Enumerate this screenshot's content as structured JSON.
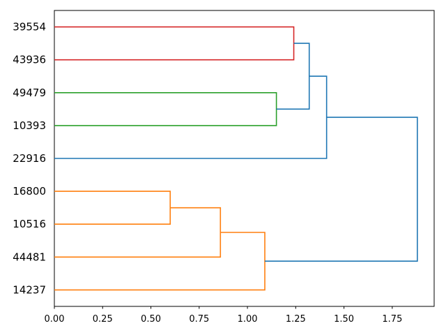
{
  "figure": {
    "background": "#ffffff",
    "title": ""
  },
  "chart_data": {
    "type": "dendrogram",
    "orientation": "left",
    "title": "",
    "xlabel": "",
    "ylabel": "",
    "grid": false,
    "legend": null,
    "leaves": [
      "39554",
      "43936",
      "49479",
      "10393",
      "22916",
      "16800",
      "10516",
      "44481",
      "14237"
    ],
    "x_ticks": [
      "0.00",
      "0.25",
      "0.50",
      "0.75",
      "1.00",
      "1.25",
      "1.50",
      "1.75"
    ],
    "x_tick_values": [
      0,
      0.25,
      0.5,
      0.75,
      1.0,
      1.25,
      1.5,
      1.75
    ],
    "xlim": [
      0,
      1.967
    ],
    "colors": {
      "red_cluster": "#d62728",
      "green_cluster": "#2ca02c",
      "orange_cluster": "#ff7f0e",
      "above_threshold": "#1f77b4",
      "axis": "#000000"
    },
    "merges": [
      {
        "members": [
          "39554",
          "43936"
        ],
        "distance": 1.24,
        "color": "#d62728"
      },
      {
        "members": [
          "49479",
          "10393"
        ],
        "distance": 1.15,
        "color": "#2ca02c"
      },
      {
        "members": [
          "39554+43936",
          "49479+10393"
        ],
        "distance": 1.32,
        "color": "#1f77b4"
      },
      {
        "members": [
          "39554+43936+49479+10393",
          "22916"
        ],
        "distance": 1.41,
        "color": "#1f77b4"
      },
      {
        "members": [
          "16800",
          "10516"
        ],
        "distance": 0.6,
        "color": "#ff7f0e"
      },
      {
        "members": [
          "16800+10516",
          "44481"
        ],
        "distance": 0.86,
        "color": "#ff7f0e"
      },
      {
        "members": [
          "16800+10516+44481",
          "14237"
        ],
        "distance": 1.09,
        "color": "#ff7f0e"
      },
      {
        "members": [
          "top-cluster",
          "bottom-cluster"
        ],
        "distance": 1.88,
        "color": "#1f77b4"
      }
    ],
    "links": [
      {
        "x": 1.24,
        "y1": 0,
        "x1": 0,
        "y2": 1,
        "x2": 0,
        "color": "#d62728"
      },
      {
        "x": 1.15,
        "y1": 2,
        "x1": 0,
        "y2": 3,
        "x2": 0,
        "color": "#2ca02c"
      },
      {
        "x": 1.32,
        "y1": 0.5,
        "x1": 1.24,
        "y2": 2.5,
        "x2": 1.15,
        "color": "#1f77b4"
      },
      {
        "x": 1.41,
        "y1": 1.5,
        "x1": 1.32,
        "y2": 4,
        "x2": 0,
        "color": "#1f77b4"
      },
      {
        "x": 0.6,
        "y1": 5,
        "x1": 0,
        "y2": 6,
        "x2": 0,
        "color": "#ff7f0e"
      },
      {
        "x": 0.86,
        "y1": 5.5,
        "x1": 0.6,
        "y2": 7,
        "x2": 0,
        "color": "#ff7f0e"
      },
      {
        "x": 1.09,
        "y1": 6.25,
        "x1": 0.86,
        "y2": 8,
        "x2": 0,
        "color": "#ff7f0e"
      },
      {
        "x": 1.88,
        "y1": 2.75,
        "x1": 1.41,
        "y2": 7.125,
        "x2": 1.09,
        "color": "#1f77b4"
      }
    ]
  }
}
